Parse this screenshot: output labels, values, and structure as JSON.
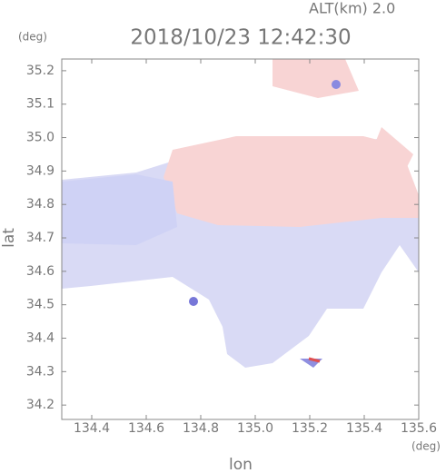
{
  "chart_data": {
    "type": "field",
    "title": "2018/10/23 12:42:30",
    "annotation": "ALT(km) 2.0",
    "xlabel": "lon",
    "ylabel": "lat",
    "xunit": "(deg)",
    "yunit": "(deg)",
    "xlim": [
      134.29,
      135.6
    ],
    "ylim": [
      34.157,
      35.235
    ],
    "xticks": [
      134.4,
      134.6,
      134.8,
      {
        "value": 135,
        "label": "135.0"
      },
      135.2,
      135.4,
      135.6
    ],
    "yticks": [
      34.2,
      34.3,
      34.4,
      34.5,
      34.6,
      34.7,
      34.8,
      34.9,
      {
        "value": 35,
        "label": "35.0"
      },
      35.1,
      35.2
    ]
  }
}
